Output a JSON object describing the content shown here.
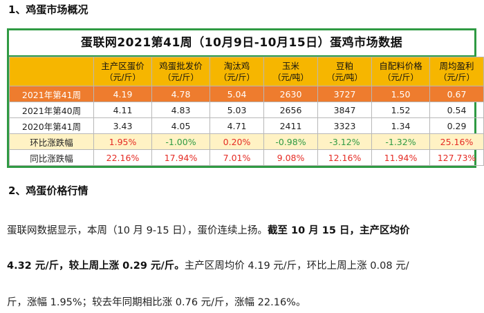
{
  "section1": {
    "title": "1、鸡蛋市场概况"
  },
  "table": {
    "title": "蛋联网2021第41周（10月9日-10月15日）蛋鸡市场数据",
    "columns": [
      {
        "name": "主产区蛋价",
        "unit": "（元/斤）"
      },
      {
        "name": "鸡蛋批发价",
        "unit": "（元/斤）"
      },
      {
        "name": "淘汰鸡",
        "unit": "（元/斤）"
      },
      {
        "name": "玉米",
        "unit": "（元/吨）"
      },
      {
        "name": "豆粕",
        "unit": "（元/吨）"
      },
      {
        "name": "自配料价格",
        "unit": "（元/斤）"
      },
      {
        "name": "周均盈利",
        "unit": "（元/斤）"
      }
    ],
    "rows": [
      {
        "label": "2021年第41周",
        "values": [
          "4.19",
          "4.78",
          "5.04",
          "2630",
          "3727",
          "1.50",
          "0.67"
        ]
      },
      {
        "label": "2021年第40周",
        "values": [
          "4.11",
          "4.83",
          "5.03",
          "2656",
          "3847",
          "1.52",
          "0.54"
        ]
      },
      {
        "label": "2020年第41周",
        "values": [
          "3.43",
          "4.05",
          "4.71",
          "2411",
          "3323",
          "1.34",
          "0.29"
        ]
      },
      {
        "label": "环比涨跌幅",
        "values": [
          "1.95%",
          "-1.00%",
          "0.20%",
          "-0.98%",
          "-3.12%",
          "-1.32%",
          "25.16%"
        ]
      },
      {
        "label": "同比涨跌幅",
        "values": [
          "22.16%",
          "17.94%",
          "7.01%",
          "9.08%",
          "12.16%",
          "11.94%",
          "127.73%"
        ]
      }
    ],
    "colors": {
      "border": "#2f9a43",
      "header_bg": "#f6b600",
      "highlight_bg": "#ee7c2e",
      "change_bg": "#fff2c4",
      "up": "#e52b24",
      "down": "#2f9a43"
    }
  },
  "section2": {
    "title": "2、鸡蛋价格行情",
    "line1_plain": "蛋联网数据显示，本周（10 月 9-15 日），蛋价连续上扬。",
    "line1_bold": "截至 10 月 15 日，主产区均价",
    "line2_bold": "4.32 元/斤，较上周上涨 0.29 元/斤。",
    "line2_plain": "主产区周均价 4.19 元/斤，环比上周上涨 0.08 元/",
    "line3_plain": "斤，涨幅 1.95%；较去年同期相比涨 0.76 元/斤，涨幅 22.16%。"
  }
}
